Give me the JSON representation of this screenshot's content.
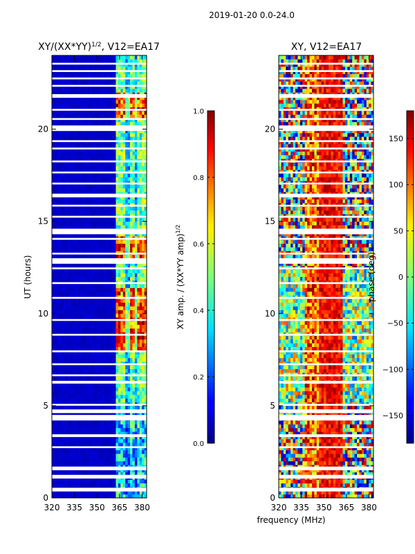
{
  "chart_data": {
    "suptitle": "2019-01-20 0.0-24.0",
    "xlabel_shared": "frequency (MHz)",
    "panels": [
      {
        "type": "heatmap",
        "title": "XY/(XX*YY)",
        "title_sup": "1/2",
        "title_suffix": ", V12=EA17",
        "ylabel": "UT (hours)",
        "xlim": [
          320,
          383
        ],
        "ylim": [
          0,
          24
        ],
        "x_ticks": [
          320,
          335,
          350,
          365,
          380
        ],
        "y_ticks": [
          0,
          5,
          10,
          15,
          20
        ],
        "colorbar": {
          "label": "XY amp. / (XX*YY amp)",
          "label_sup": "1/2",
          "range": [
            0.0,
            1.0
          ],
          "ticks": [
            "0.0",
            "0.2",
            "0.4",
            "0.6",
            "0.8",
            "1.0"
          ]
        }
      },
      {
        "type": "heatmap",
        "title": "XY, V12=EA17",
        "ylabel": "",
        "xlim": [
          320,
          383
        ],
        "ylim": [
          0,
          24
        ],
        "x_ticks": [
          320,
          335,
          350,
          365,
          380
        ],
        "y_ticks": [
          0,
          5,
          10,
          15,
          20
        ],
        "colorbar": {
          "label": "phase (deg)",
          "range": [
            -180,
            180
          ],
          "ticks": [
            "−150",
            "−100",
            "−50",
            "0",
            "50",
            "100",
            "150"
          ]
        }
      }
    ]
  }
}
